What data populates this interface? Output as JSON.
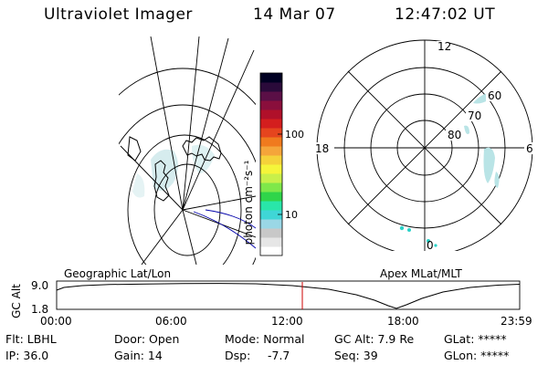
{
  "header": {
    "title": "Ultraviolet Imager",
    "date": "14 Mar 07",
    "time": "12:47:02 UT"
  },
  "colorbar": {
    "unit_label": "photon cm⁻²s⁻¹",
    "ticks": [
      {
        "value": 100,
        "label": "100"
      },
      {
        "value": 10,
        "label": "10"
      }
    ],
    "colors": [
      "#ffffff",
      "#e6e6e6",
      "#c8c8c8",
      "#9ad7e6",
      "#3fd6d6",
      "#29e6a9",
      "#2fd54a",
      "#7ee84a",
      "#c8f04a",
      "#f5f53a",
      "#f5d23a",
      "#f5a53a",
      "#f07a1e",
      "#e5451e",
      "#d41e1e",
      "#b0102a",
      "#8a0f3c",
      "#5a0f46",
      "#2a0a3a",
      "#000022"
    ]
  },
  "polar": {
    "mlt_top": "12",
    "mlt_left": "18",
    "mlt_right": "6",
    "mlt_bottom": "0",
    "lat_labels": [
      "60",
      "70",
      "80"
    ]
  },
  "timeline": {
    "left_label": "Geographic Lat/Lon",
    "right_label": "Apex MLat/MLT",
    "y_axis_label": "GC Alt",
    "y_ticks": [
      "9.0",
      "1.8"
    ],
    "x_ticks": [
      "00:00",
      "06:00",
      "12:00",
      "18:00",
      "23:59"
    ],
    "current_time_hours": 12.78
  },
  "info": {
    "filter": "Flt: LBHL",
    "door": "Door: Open",
    "mode": "Mode: Normal",
    "gc_alt": "GC Alt: 7.9 Re",
    "glat": "GLat: *****",
    "ip": "IP: 36.0",
    "gain": "Gain: 14",
    "dsp_label": "Dsp:",
    "dsp_value": "-7.7",
    "seq": "Seq: 39",
    "glon": "GLon: *****"
  }
}
